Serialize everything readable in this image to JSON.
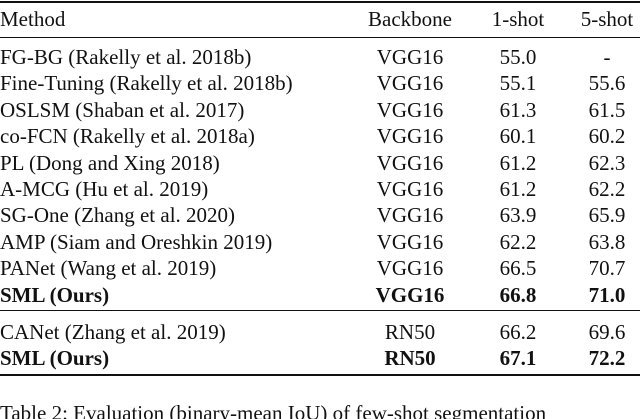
{
  "table": {
    "header": [
      "Method",
      "Backbone",
      "1-shot",
      "5-shot"
    ],
    "groups": [
      {
        "rows": [
          {
            "cells": [
              "FG-BG (Rakelly et al. 2018b)",
              "VGG16",
              "55.0",
              "-"
            ],
            "bold": false
          },
          {
            "cells": [
              "Fine-Tuning (Rakelly et al. 2018b)",
              "VGG16",
              "55.1",
              "55.6"
            ],
            "bold": false
          },
          {
            "cells": [
              "OSLSM (Shaban et al. 2017)",
              "VGG16",
              "61.3",
              "61.5"
            ],
            "bold": false
          },
          {
            "cells": [
              "co-FCN (Rakelly et al. 2018a)",
              "VGG16",
              "60.1",
              "60.2"
            ],
            "bold": false
          },
          {
            "cells": [
              "PL (Dong and Xing 2018)",
              "VGG16",
              "61.2",
              "62.3"
            ],
            "bold": false
          },
          {
            "cells": [
              "A-MCG (Hu et al. 2019)",
              "VGG16",
              "61.2",
              "62.2"
            ],
            "bold": false
          },
          {
            "cells": [
              "SG-One (Zhang et al. 2020)",
              "VGG16",
              "63.9",
              "65.9"
            ],
            "bold": false
          },
          {
            "cells": [
              "AMP (Siam and Oreshkin 2019)",
              "VGG16",
              "62.2",
              "63.8"
            ],
            "bold": false
          },
          {
            "cells": [
              "PANet (Wang et al. 2019)",
              "VGG16",
              "66.5",
              "70.7"
            ],
            "bold": false
          },
          {
            "cells": [
              "SML (Ours)",
              "VGG16",
              "66.8",
              "71.0"
            ],
            "bold": true
          }
        ]
      },
      {
        "rows": [
          {
            "cells": [
              "CANet (Zhang et al. 2019)",
              "RN50",
              "66.2",
              "69.6"
            ],
            "bold": false
          },
          {
            "cells": [
              "SML (Ours)",
              "RN50",
              "67.1",
              "72.2"
            ],
            "bold": true
          }
        ]
      }
    ],
    "caption": "Table 2: Evaluation (binary-mean IoU) of few-shot segmentation"
  }
}
